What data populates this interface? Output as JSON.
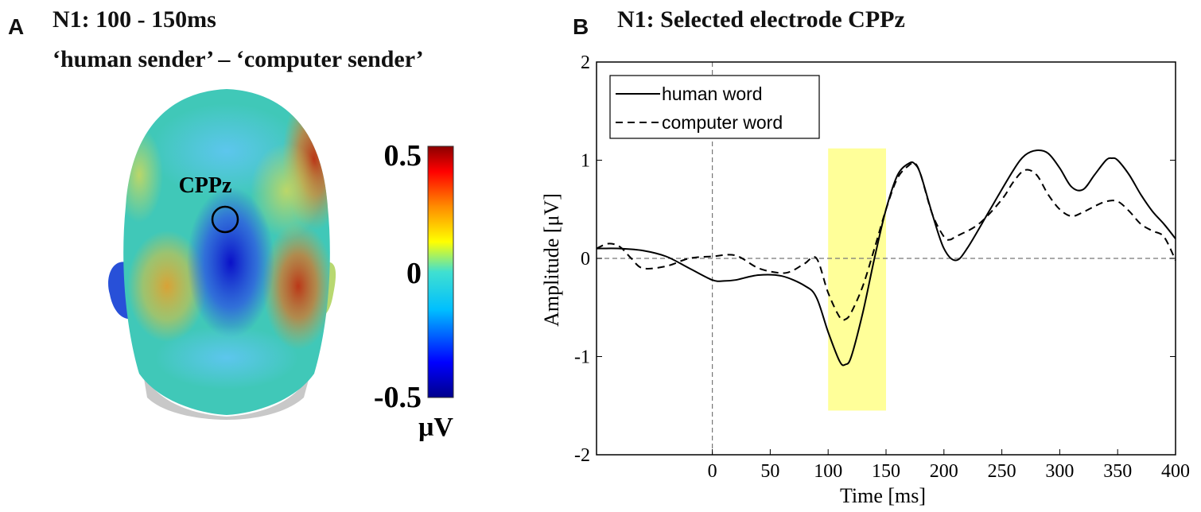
{
  "panel_a": {
    "letter": "A",
    "title_line1": "N1: 100 - 150ms",
    "title_line2": "‘human sender’ – ‘computer sender’",
    "electrode_label": "CPPz",
    "colorbar": {
      "max_label": "0.5",
      "mid_label": "0",
      "min_label": "-0.5",
      "unit": "μV",
      "colormap": [
        "#00008b",
        "#0000ff",
        "#00bfff",
        "#40e0d0",
        "#ffff00",
        "#ff8c00",
        "#ff0000",
        "#8b0000"
      ]
    }
  },
  "panel_b": {
    "letter": "B",
    "title": "N1: Selected electrode CPPz"
  },
  "chart_data": {
    "type": "line",
    "title": "N1: Selected electrode CPPz",
    "xlabel": "Time [ms]",
    "ylabel": "Amplitude [μV]",
    "xlim": [
      -100,
      400
    ],
    "ylim": [
      -2,
      2
    ],
    "x_ticks": [
      "0",
      "50",
      "100",
      "150",
      "200",
      "250",
      "300",
      "350",
      "400"
    ],
    "x_tick_values": [
      0,
      50,
      100,
      150,
      200,
      250,
      300,
      350,
      400
    ],
    "y_ticks": [
      "-2",
      "-1",
      "0",
      "1",
      "2"
    ],
    "y_tick_values": [
      -2,
      -1,
      0,
      1,
      2
    ],
    "highlight": {
      "x_from": 100,
      "x_to": 150,
      "color": "#ffff99"
    },
    "legend_position": "top-left",
    "series": [
      {
        "name": "human word",
        "style": "solid",
        "x": [
          -100,
          -80,
          -60,
          -40,
          -20,
          0,
          10,
          20,
          40,
          60,
          80,
          90,
          100,
          110,
          115,
          120,
          130,
          140,
          150,
          160,
          170,
          175,
          180,
          190,
          200,
          210,
          220,
          240,
          260,
          270,
          280,
          290,
          300,
          310,
          320,
          330,
          340,
          345,
          350,
          360,
          370,
          380,
          390,
          400
        ],
        "y": [
          0.1,
          0.1,
          0.08,
          0.02,
          -0.1,
          -0.22,
          -0.23,
          -0.22,
          -0.17,
          -0.18,
          -0.28,
          -0.4,
          -0.75,
          -1.05,
          -1.08,
          -1.0,
          -0.55,
          0.0,
          0.5,
          0.85,
          0.97,
          0.96,
          0.85,
          0.45,
          0.1,
          -0.02,
          0.1,
          0.5,
          0.9,
          1.05,
          1.1,
          1.07,
          0.92,
          0.73,
          0.7,
          0.85,
          1.0,
          1.02,
          1.0,
          0.85,
          0.65,
          0.48,
          0.35,
          0.2
        ]
      },
      {
        "name": "computer word",
        "style": "dashed",
        "x": [
          -100,
          -90,
          -80,
          -70,
          -60,
          -40,
          -20,
          0,
          20,
          40,
          60,
          70,
          80,
          90,
          100,
          110,
          115,
          120,
          130,
          140,
          150,
          160,
          170,
          175,
          180,
          190,
          200,
          205,
          210,
          230,
          250,
          260,
          270,
          280,
          290,
          300,
          310,
          320,
          330,
          340,
          350,
          360,
          370,
          380,
          390,
          400
        ],
        "y": [
          0.1,
          0.15,
          0.12,
          0.0,
          -0.1,
          -0.08,
          0.0,
          0.02,
          0.03,
          -0.1,
          -0.15,
          -0.12,
          -0.05,
          0.0,
          -0.35,
          -0.6,
          -0.62,
          -0.55,
          -0.28,
          0.1,
          0.5,
          0.82,
          0.95,
          0.97,
          0.85,
          0.45,
          0.22,
          0.19,
          0.22,
          0.35,
          0.6,
          0.78,
          0.9,
          0.85,
          0.65,
          0.5,
          0.43,
          0.47,
          0.53,
          0.58,
          0.58,
          0.48,
          0.35,
          0.28,
          0.22,
          -0.02
        ]
      }
    ]
  }
}
